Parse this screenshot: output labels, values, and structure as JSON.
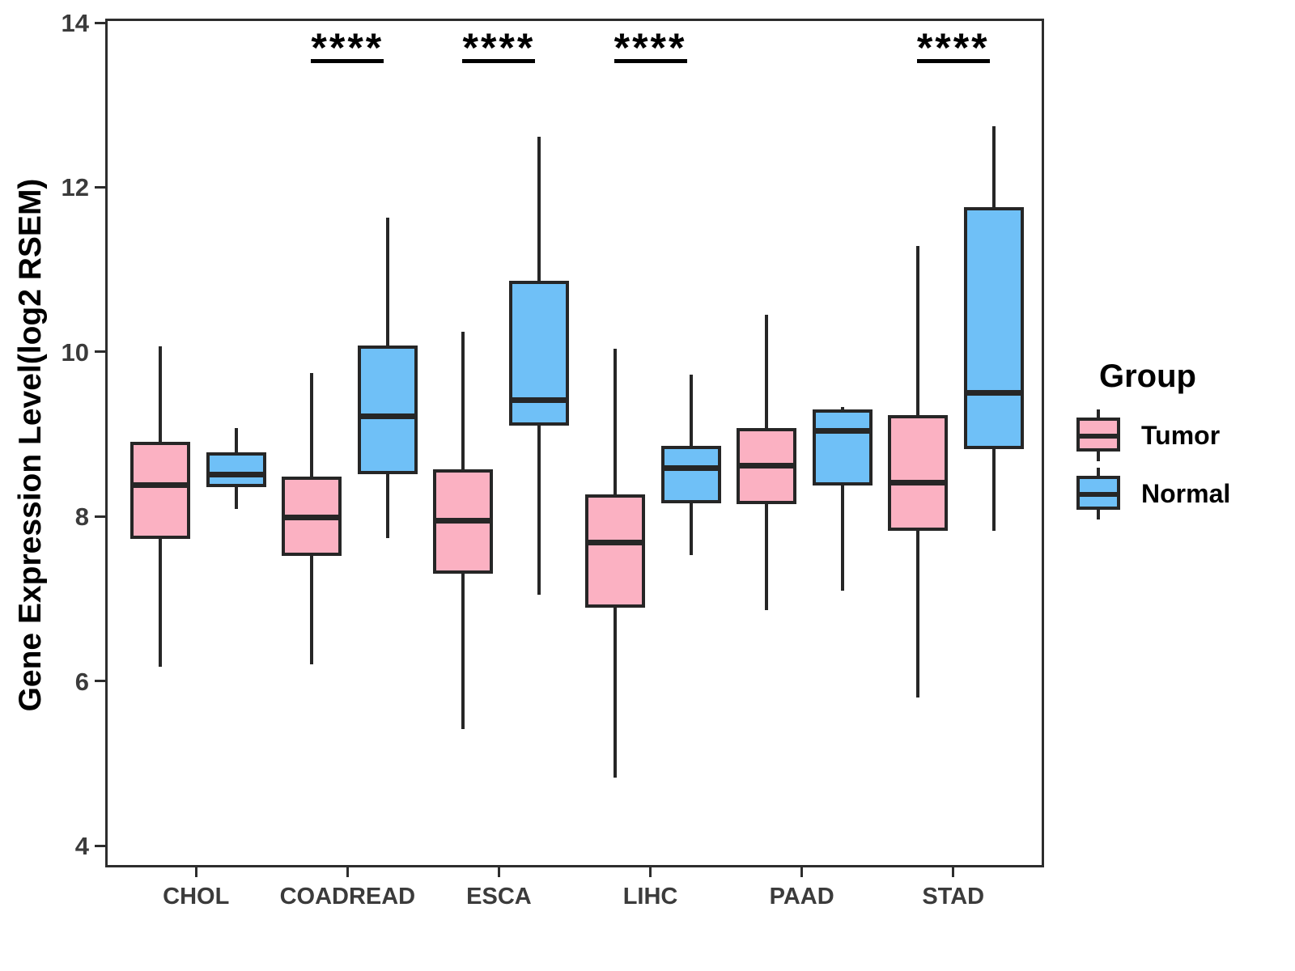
{
  "y_axis": {
    "label": "Gene Expression Level(log2 RSEM)",
    "ticks": [
      "4",
      "6",
      "8",
      "10",
      "12",
      "14"
    ],
    "range": [
      4,
      14
    ]
  },
  "x_axis": {
    "categories": [
      "CHOL",
      "COADREAD",
      "ESCA",
      "LIHC",
      "PAAD",
      "STAD"
    ]
  },
  "legend": {
    "title": "Group",
    "entries": [
      {
        "label": "Tumor",
        "color": "#FBB1C2"
      },
      {
        "label": "Normal",
        "color": "#6FC0F7"
      }
    ]
  },
  "colors": {
    "tumor_fill": "#FBB1C2",
    "normal_fill": "#6FC0F7",
    "stroke": "#262626",
    "axis_text": "#3b3b3b",
    "panel_border": "#2d2d2d"
  },
  "significance": {
    "marker": "****",
    "per_category": [
      null,
      "****",
      "****",
      "****",
      null,
      "****"
    ]
  },
  "chart_data": {
    "type": "boxplot-grouped",
    "title": "",
    "xlabel": "",
    "ylabel": "Gene Expression Level(log2 RSEM)",
    "ylim": [
      4,
      14
    ],
    "grid": false,
    "legend_position": "right",
    "categories": [
      "CHOL",
      "COADREAD",
      "ESCA",
      "LIHC",
      "PAAD",
      "STAD"
    ],
    "series": [
      {
        "name": "Tumor",
        "color": "#FBB1C2",
        "data": [
          {
            "low": 6.2,
            "q1": 7.76,
            "median": 8.41,
            "q3": 8.94,
            "high": 10.1
          },
          {
            "low": 6.23,
            "q1": 7.55,
            "median": 8.02,
            "q3": 8.51,
            "high": 9.77
          },
          {
            "low": 5.45,
            "q1": 7.33,
            "median": 7.98,
            "q3": 8.6,
            "high": 10.27
          },
          {
            "low": 4.86,
            "q1": 6.92,
            "median": 7.71,
            "q3": 8.3,
            "high": 10.07
          },
          {
            "low": 6.89,
            "q1": 8.18,
            "median": 8.65,
            "q3": 9.1,
            "high": 10.48
          },
          {
            "low": 5.83,
            "q1": 7.85,
            "median": 8.44,
            "q3": 9.26,
            "high": 11.32
          }
        ]
      },
      {
        "name": "Normal",
        "color": "#6FC0F7",
        "data": [
          {
            "low": 8.12,
            "q1": 8.39,
            "median": 8.54,
            "q3": 8.81,
            "high": 9.1
          },
          {
            "low": 7.77,
            "q1": 8.54,
            "median": 9.25,
            "q3": 10.11,
            "high": 11.66
          },
          {
            "low": 7.08,
            "q1": 9.13,
            "median": 9.44,
            "q3": 10.89,
            "high": 12.64
          },
          {
            "low": 7.56,
            "q1": 8.19,
            "median": 8.62,
            "q3": 8.89,
            "high": 9.75
          },
          {
            "low": 7.13,
            "q1": 8.41,
            "median": 9.07,
            "q3": 9.33,
            "high": 9.36
          },
          {
            "low": 7.85,
            "q1": 8.85,
            "median": 9.53,
            "q3": 11.79,
            "high": 12.77
          }
        ]
      }
    ],
    "annotations": [
      {
        "category": "COADREAD",
        "text": "****"
      },
      {
        "category": "ESCA",
        "text": "****"
      },
      {
        "category": "LIHC",
        "text": "****"
      },
      {
        "category": "STAD",
        "text": "****"
      }
    ]
  }
}
